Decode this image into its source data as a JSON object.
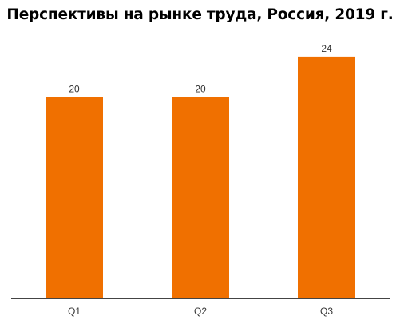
{
  "chart_data": {
    "type": "bar",
    "title": "Перспективы на рынке труда, Россия, 2019 г.",
    "categories": [
      "Q1",
      "Q2",
      "Q3"
    ],
    "values": [
      20,
      20,
      24
    ],
    "data_labels": [
      "20",
      "20",
      "24"
    ],
    "xlabel": "",
    "ylabel": "",
    "ylim": [
      0,
      27
    ],
    "grid": false,
    "legend": "none",
    "bar_color": "#f07000",
    "axis_color": "#444444"
  }
}
